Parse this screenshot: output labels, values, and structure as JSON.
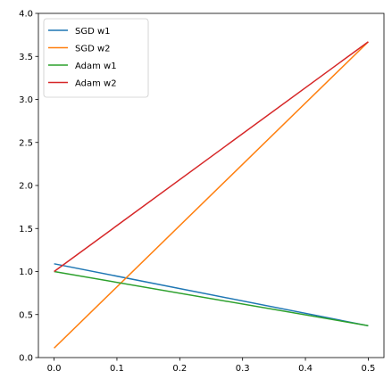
{
  "chart_data": {
    "type": "line",
    "title": "",
    "xlabel": "",
    "ylabel": "",
    "xlim": [
      -0.025,
      0.525
    ],
    "ylim": [
      0,
      4.0
    ],
    "xticks": [
      0.0,
      0.1,
      0.2,
      0.3,
      0.4,
      0.5
    ],
    "xtick_labels": [
      "0.0",
      "0.1",
      "0.2",
      "0.3",
      "0.4",
      "0.5"
    ],
    "yticks": [
      0.0,
      0.5,
      1.0,
      1.5,
      2.0,
      2.5,
      3.0,
      3.5,
      4.0
    ],
    "ytick_labels": [
      "0.0",
      "0.5",
      "1.0",
      "1.5",
      "2.0",
      "2.5",
      "3.0",
      "3.5",
      "4.0"
    ],
    "grid": false,
    "legend_position": "top-left",
    "series": [
      {
        "name": "SGD w1",
        "color": "#1f77b4",
        "x": [
          0.0,
          0.5
        ],
        "y": [
          1.09,
          0.37
        ]
      },
      {
        "name": "SGD w2",
        "color": "#ff7f0e",
        "x": [
          0.0,
          0.5
        ],
        "y": [
          0.11,
          3.67
        ]
      },
      {
        "name": "Adam w1",
        "color": "#2ca02c",
        "x": [
          0.0,
          0.5
        ],
        "y": [
          1.0,
          0.37
        ]
      },
      {
        "name": "Adam w2",
        "color": "#d62728",
        "x": [
          0.0,
          0.5
        ],
        "y": [
          1.0,
          3.67
        ]
      }
    ]
  }
}
